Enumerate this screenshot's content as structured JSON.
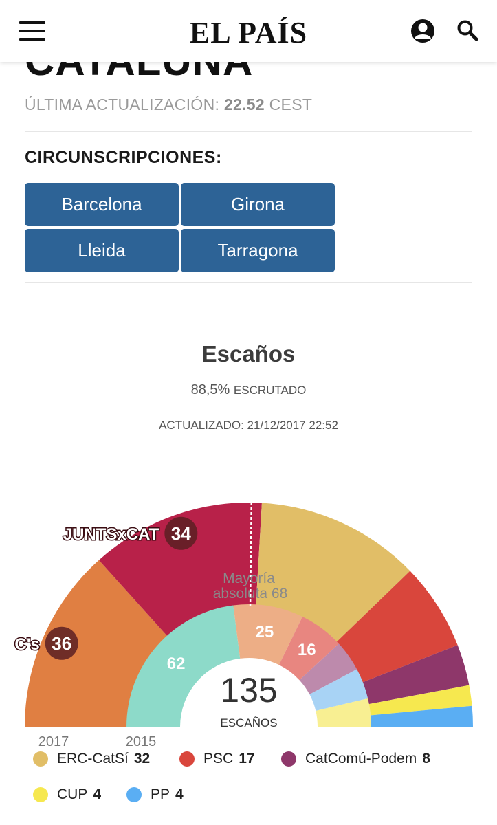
{
  "header": {
    "logo": "EL PAÍS",
    "menu_icon": "hamburger-menu-icon",
    "user_icon": "user-account-icon",
    "search_icon": "search-icon"
  },
  "page": {
    "heading": "CATALUÑA",
    "update_prefix": "ÚLTIMA ACTUALIZACIÓN: ",
    "update_time": "22.52",
    "update_suffix": " CEST",
    "districts_label": "CIRCUNSCRIPCIONES:",
    "districts": [
      "Barcelona",
      "Girona",
      "Lleida",
      "Tarragona"
    ],
    "button_color": "#2d6396"
  },
  "chart_data": {
    "type": "hemicycle",
    "title": "Escaños",
    "scrutiny_value": "88,5%",
    "scrutiny_label": "ESCRUTADO",
    "updated_text": "ACTUALIZADO: 21/12/2017 22:52",
    "total_seats": "135",
    "total_label": "ESCAÑOS",
    "majority_text_1": "Mayoría",
    "majority_text_2": "absoluta 68",
    "majority_seats": 68,
    "rings": [
      {
        "label": "2017",
        "series": [
          {
            "name": "C's",
            "seats": 36,
            "color": "#e07f42",
            "badge": true
          },
          {
            "name": "JUNTSxCAT",
            "seats": 34,
            "color": "#b82149",
            "badge": true
          },
          {
            "name": "ERC-CatSí",
            "seats": 32,
            "color": "#e1be67"
          },
          {
            "name": "PSC",
            "seats": 17,
            "color": "#d9463c"
          },
          {
            "name": "CatComú-Podem",
            "seats": 8,
            "color": "#8e376a"
          },
          {
            "name": "CUP",
            "seats": 4,
            "color": "#f6e84f"
          },
          {
            "name": "PP",
            "seats": 4,
            "color": "#5aaef3"
          }
        ]
      },
      {
        "label": "2015",
        "series": [
          {
            "seats": 62,
            "color": "#8ddac9",
            "show_value": true
          },
          {
            "seats": 25,
            "color": "#edae86",
            "show_value": true
          },
          {
            "seats": 16,
            "color": "#e88680",
            "show_value": true
          },
          {
            "seats": 11,
            "color": "#bd8aac"
          },
          {
            "seats": 11,
            "color": "#a8d3f5"
          },
          {
            "seats": 10,
            "color": "#f8ef92"
          }
        ]
      }
    ],
    "legend": [
      {
        "name": "ERC-CatSí",
        "seats": "32",
        "color": "#e1be67"
      },
      {
        "name": "PSC",
        "seats": "17",
        "color": "#d9463c"
      },
      {
        "name": "CatComú-Podem",
        "seats": "8",
        "color": "#8e376a"
      },
      {
        "name": "CUP",
        "seats": "4",
        "color": "#f6e84f"
      },
      {
        "name": "PP",
        "seats": "4",
        "color": "#5aaef3"
      }
    ]
  }
}
